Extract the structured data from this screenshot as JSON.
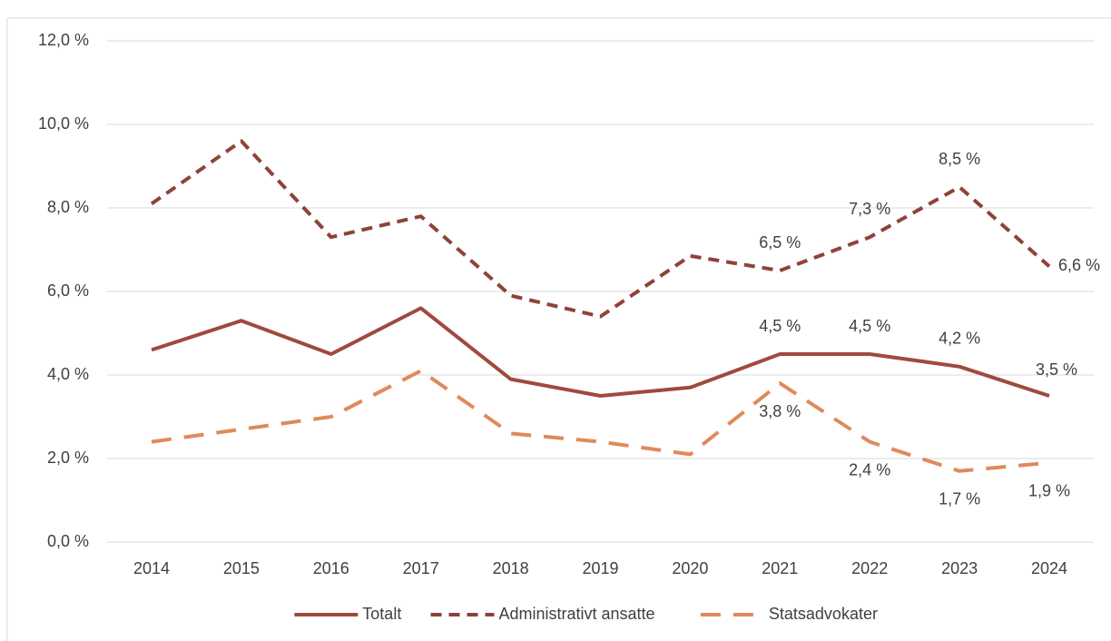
{
  "chart_data": {
    "type": "line",
    "x": [
      "2014",
      "2015",
      "2016",
      "2017",
      "2018",
      "2019",
      "2020",
      "2021",
      "2022",
      "2023",
      "2024"
    ],
    "ylim": [
      0,
      12
    ],
    "yticks": [
      {
        "value": 0,
        "label": "0,0 %"
      },
      {
        "value": 2,
        "label": "2,0 %"
      },
      {
        "value": 4,
        "label": "4,0 %"
      },
      {
        "value": 6,
        "label": "6,0 %"
      },
      {
        "value": 8,
        "label": "8,0 %"
      },
      {
        "value": 10,
        "label": "10,0 %"
      },
      {
        "value": 12,
        "label": "12,0 %"
      }
    ],
    "grid": true,
    "legend": "bottom",
    "series": [
      {
        "name": "Totalt",
        "color": "#9f4a3e",
        "line_style": "solid",
        "values": [
          4.6,
          5.3,
          4.5,
          5.6,
          3.9,
          3.5,
          3.7,
          4.5,
          4.5,
          4.2,
          3.5
        ],
        "value_labels": [
          null,
          null,
          null,
          null,
          null,
          null,
          null,
          "4,5 %",
          "4,5 %",
          "4,2 %",
          "3,5 %"
        ]
      },
      {
        "name": "Administrativt ansatte",
        "color": "#8e4337",
        "line_style": "dashed",
        "values": [
          8.1,
          9.6,
          7.3,
          7.8,
          5.9,
          5.4,
          6.85,
          6.5,
          7.3,
          8.5,
          6.6
        ],
        "value_labels": [
          null,
          null,
          null,
          null,
          null,
          null,
          null,
          "6,5 %",
          "7,3 %",
          "8,5 %",
          "6,6 %"
        ]
      },
      {
        "name": "Statsadvokater",
        "color": "#df8a5c",
        "line_style": "long-dashed",
        "values": [
          2.4,
          2.7,
          3.0,
          4.1,
          2.6,
          2.4,
          2.1,
          3.8,
          2.4,
          1.7,
          1.9
        ],
        "value_labels": [
          null,
          null,
          null,
          null,
          null,
          null,
          null,
          "3,8 %",
          "2,4 %",
          "1,7 %",
          "1,9 %"
        ]
      }
    ]
  }
}
